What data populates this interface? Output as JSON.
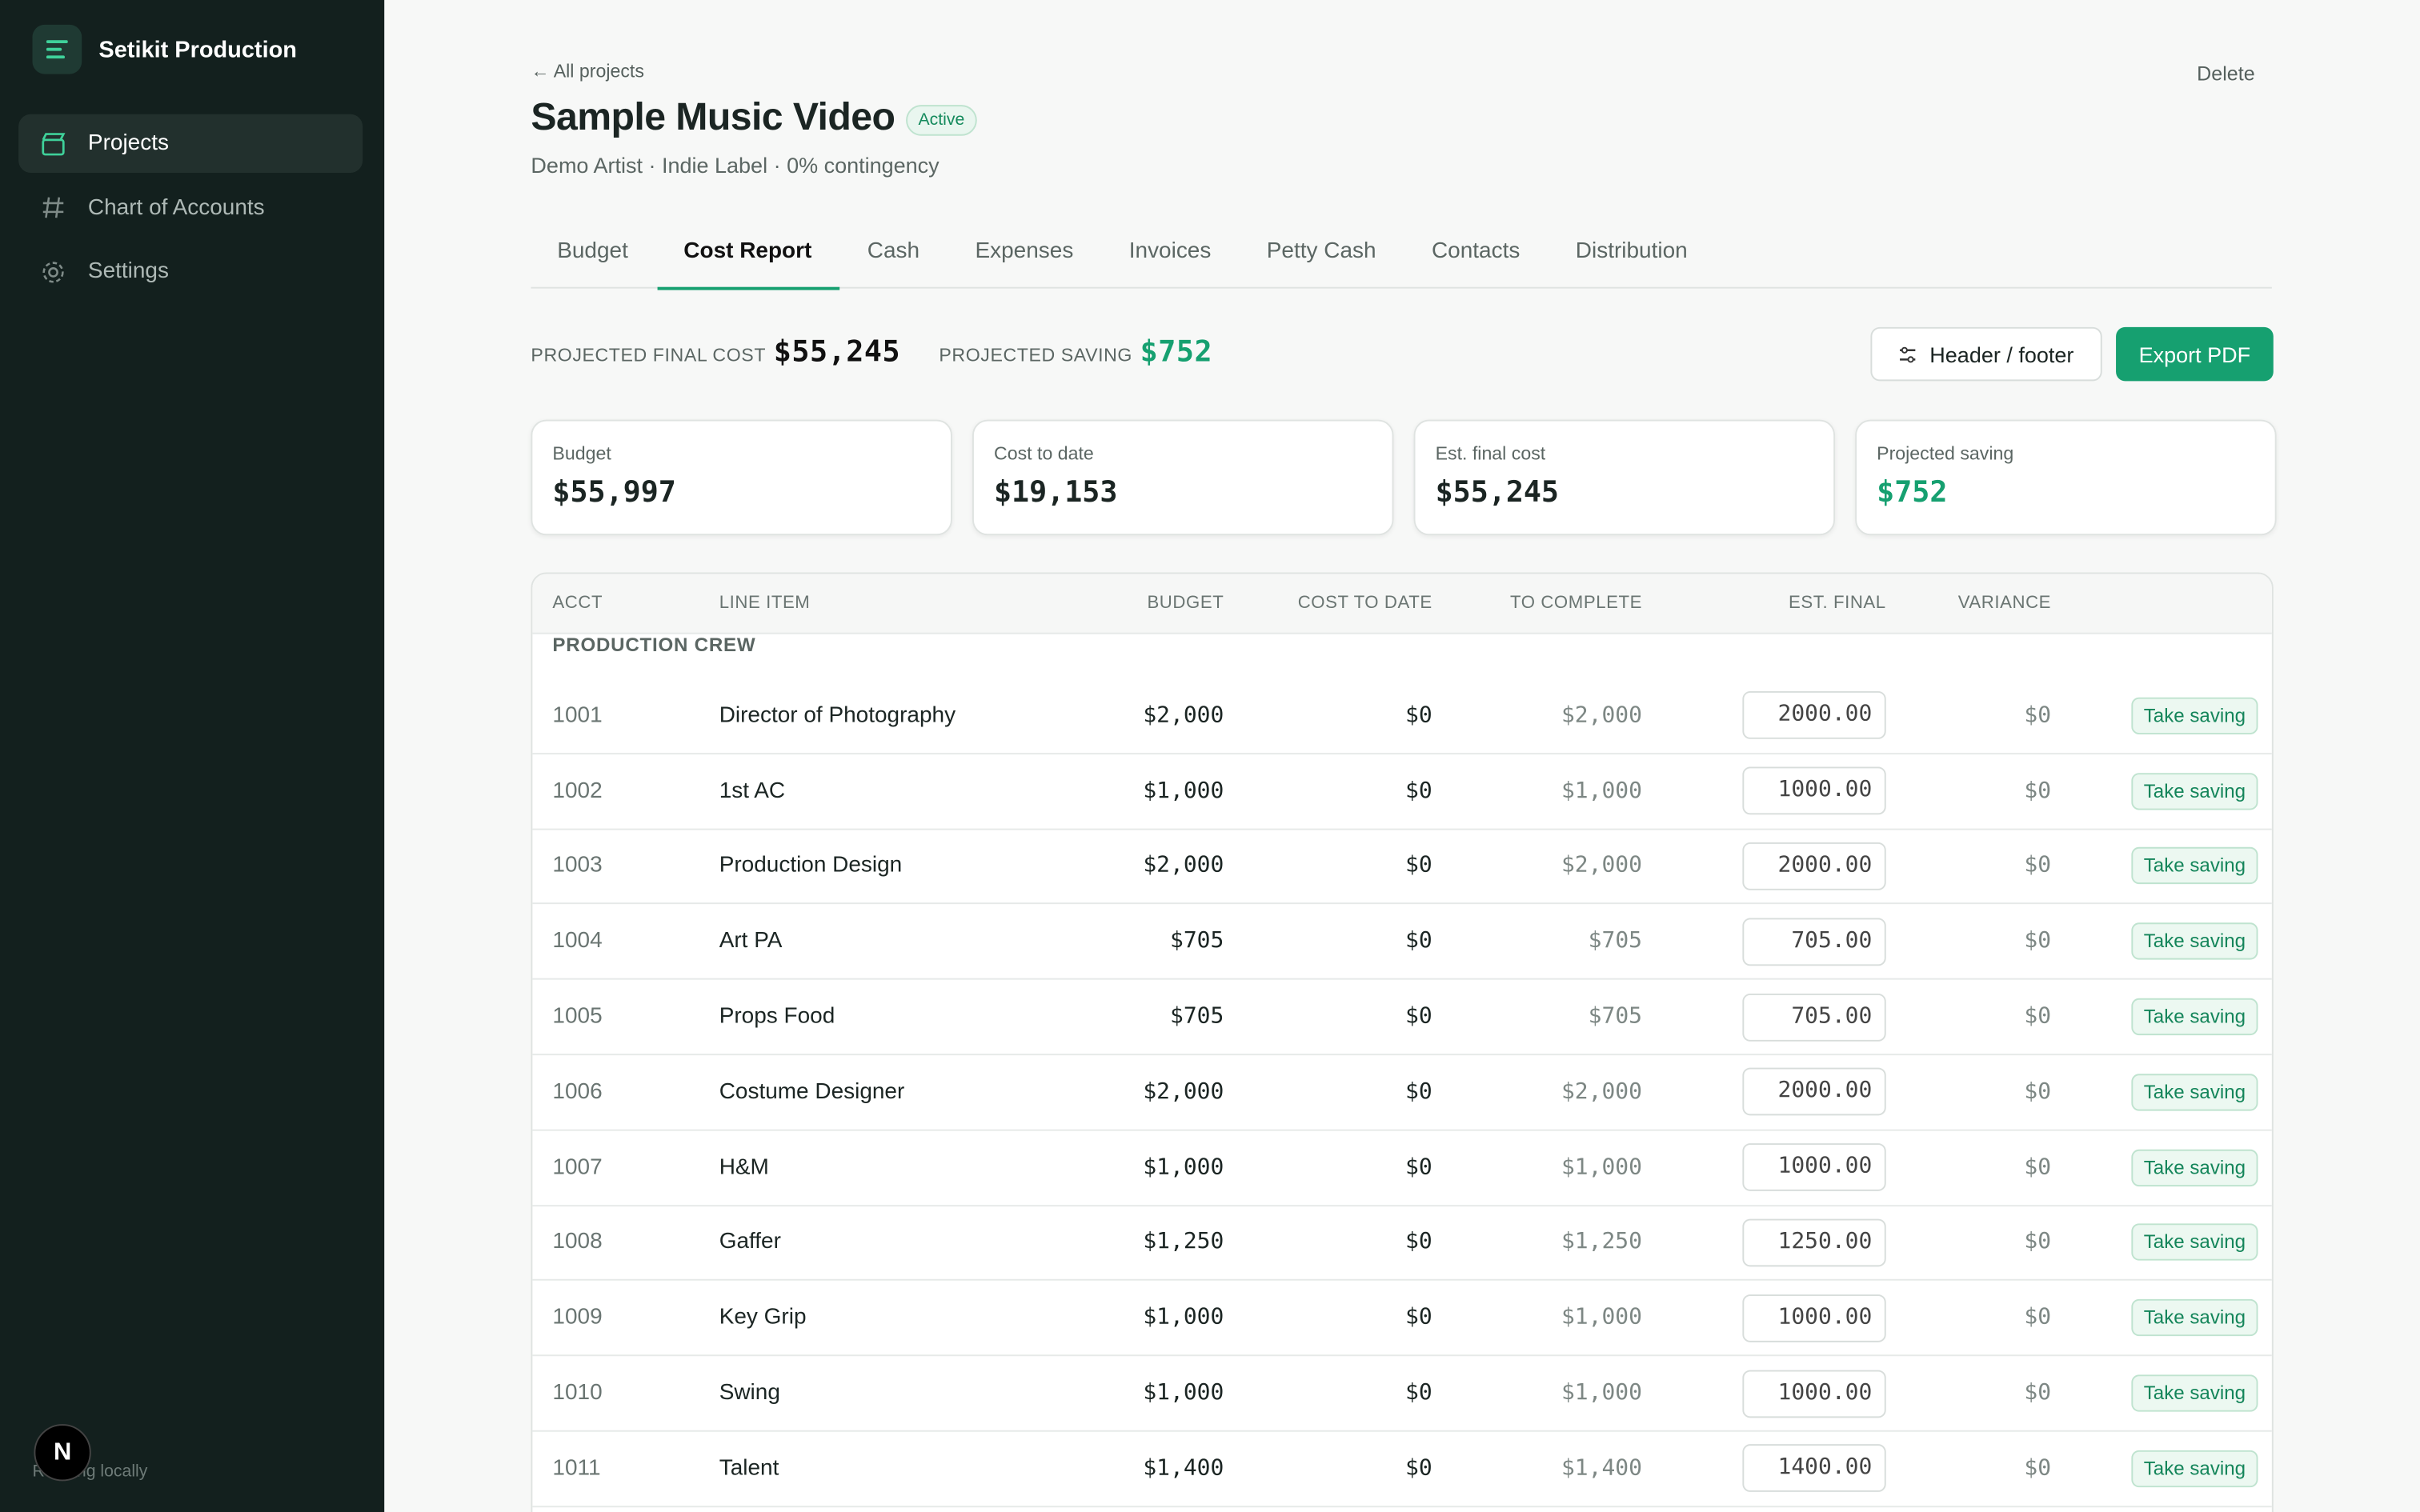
{
  "sidebar": {
    "brand": "Setikit Production",
    "nav": [
      "Projects",
      "Chart of Accounts",
      "Settings"
    ],
    "active_nav": 0,
    "status": "Running locally",
    "badge": "N"
  },
  "header": {
    "back": "← All projects",
    "title": "Sample Music Video",
    "status": "Active",
    "subtitle": "Demo Artist · Indie Label · 0% contingency",
    "delete": "Delete"
  },
  "tabs": [
    "Budget",
    "Cost Report",
    "Cash",
    "Expenses",
    "Invoices",
    "Petty Cash",
    "Contacts",
    "Distribution"
  ],
  "active_tab": 1,
  "summary": {
    "final_label": "PROJECTED FINAL COST",
    "final_value": "$55,245",
    "saving_label": "PROJECTED SAVING",
    "saving_value": "$752"
  },
  "buttons": {
    "header_footer": "Header / footer",
    "export": "Export PDF"
  },
  "cards": [
    {
      "label": "Budget",
      "value": "$55,997"
    },
    {
      "label": "Cost to date",
      "value": "$19,153"
    },
    {
      "label": "Est. final cost",
      "value": "$55,245"
    },
    {
      "label": "Projected saving",
      "value": "$752"
    }
  ],
  "table": {
    "columns": [
      "ACCT",
      "LINE ITEM",
      "BUDGET",
      "COST TO DATE",
      "TO COMPLETE",
      "EST. FINAL",
      "VARIANCE"
    ],
    "section": "PRODUCTION CREW",
    "action": "Take saving",
    "rows": [
      [
        "1001",
        "Director of Photography",
        "$2,000",
        "$0",
        "$2,000",
        "2000.00",
        "$0"
      ],
      [
        "1002",
        "1st AC",
        "$1,000",
        "$0",
        "$1,000",
        "1000.00",
        "$0"
      ],
      [
        "1003",
        "Production Design",
        "$2,000",
        "$0",
        "$2,000",
        "2000.00",
        "$0"
      ],
      [
        "1004",
        "Art PA",
        "$705",
        "$0",
        "$705",
        "705.00",
        "$0"
      ],
      [
        "1005",
        "Props Food",
        "$705",
        "$0",
        "$705",
        "705.00",
        "$0"
      ],
      [
        "1006",
        "Costume Designer",
        "$2,000",
        "$0",
        "$2,000",
        "2000.00",
        "$0"
      ],
      [
        "1007",
        "H&M",
        "$1,000",
        "$0",
        "$1,000",
        "1000.00",
        "$0"
      ],
      [
        "1008",
        "Gaffer",
        "$1,250",
        "$0",
        "$1,250",
        "1250.00",
        "$0"
      ],
      [
        "1009",
        "Key Grip",
        "$1,000",
        "$0",
        "$1,000",
        "1000.00",
        "$0"
      ],
      [
        "1010",
        "Swing",
        "$1,000",
        "$0",
        "$1,000",
        "1000.00",
        "$0"
      ],
      [
        "1011",
        "Talent",
        "$1,400",
        "$0",
        "$1,400",
        "1400.00",
        "$0"
      ]
    ]
  }
}
